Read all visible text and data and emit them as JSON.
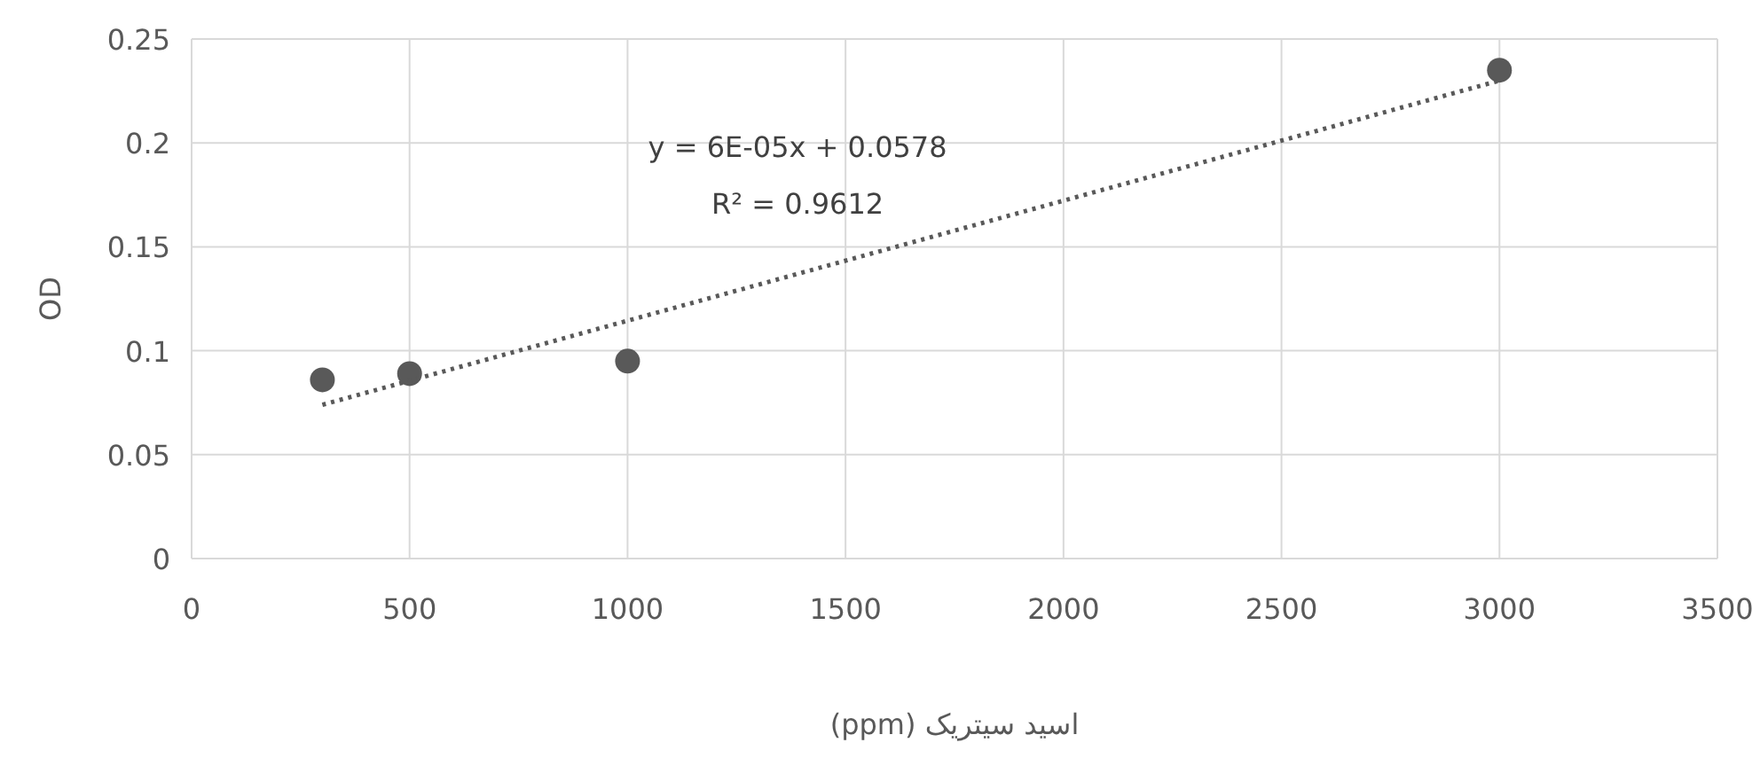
{
  "chart_data": {
    "type": "scatter",
    "xlabel": "اسید سیتریک (ppm)",
    "ylabel": "OD",
    "x": [
      300,
      500,
      1000,
      3000
    ],
    "series": [
      {
        "type": "scatter",
        "color": "#595959",
        "marker": "circle",
        "values": [
          0.086,
          0.089,
          0.095,
          0.235
        ]
      },
      {
        "type": "line",
        "color": "#595959",
        "line_style": "dotted",
        "marker": "none",
        "x": [
          300,
          3000
        ],
        "values": [
          0.074,
          0.23
        ]
      }
    ],
    "xlim": [
      0,
      3500
    ],
    "ylim": [
      0,
      0.25
    ],
    "xticks": [
      0,
      500,
      1000,
      1500,
      2000,
      2500,
      3000,
      3500
    ],
    "yticks": [
      0,
      0.05,
      0.1,
      0.15,
      0.2,
      0.25
    ],
    "grid": true,
    "annotations": [
      "y = 6E-05x + 0.0578",
      "R² = 0.9612"
    ]
  }
}
